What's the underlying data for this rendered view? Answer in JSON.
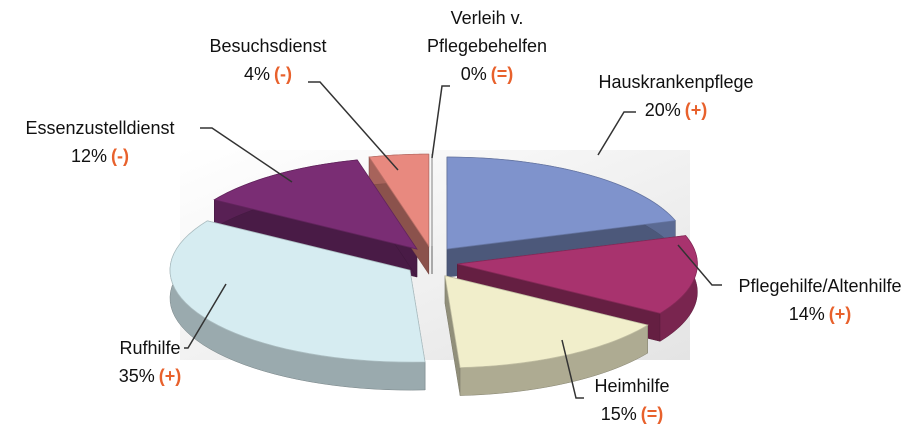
{
  "chart_data": {
    "type": "pie",
    "categories": [
      "Hauskrankenpflege",
      "Pflegehilfe/Altenhilfe",
      "Heimhilfe",
      "Rufhilfe",
      "Essenzustelldienst",
      "Besuchsdienst",
      "Verleih v. Pflegebehelfen"
    ],
    "values": [
      20,
      14,
      15,
      35,
      12,
      4,
      0
    ],
    "value_labels": [
      "20%",
      "14%",
      "15%",
      "35%",
      "12%",
      "4%",
      "0%"
    ],
    "trend": [
      "(+)",
      "(+)",
      "(=)",
      "(+)",
      "(-)",
      "(-)",
      "(=)"
    ],
    "colors": [
      "#7f93cc",
      "#a8336e",
      "#f1eecb",
      "#d6ecf1",
      "#7a2d74",
      "#e8897f",
      "#b0b0b0"
    ]
  }
}
